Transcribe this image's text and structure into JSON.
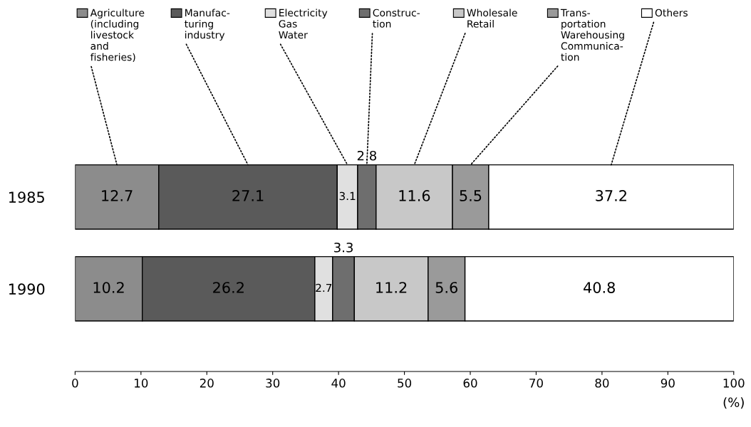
{
  "chart_data": {
    "type": "bar",
    "orientation": "horizontal",
    "stacked": true,
    "categories": [
      "1985",
      "1990"
    ],
    "series": [
      {
        "name": "Agriculture\n(including\nlivestock\nand\nfisheries)",
        "color": "#8c8c8c",
        "values": [
          12.7,
          10.2
        ]
      },
      {
        "name": "Manufac-\nturing\nindustry",
        "color": "#5a5a5a",
        "values": [
          27.1,
          26.2
        ]
      },
      {
        "name": "Electricity\nGas\nWater",
        "color": "#e0e0e0",
        "values": [
          3.1,
          2.7
        ]
      },
      {
        "name": "Construc-\ntion",
        "color": "#6e6e6e",
        "values": [
          2.8,
          3.3
        ]
      },
      {
        "name": "Wholesale\nRetail",
        "color": "#c8c8c8",
        "values": [
          11.6,
          11.2
        ]
      },
      {
        "name": "Trans-\nportation\nWarehousing\nCommunica-\ntion",
        "color": "#9a9a9a",
        "values": [
          5.5,
          5.6
        ]
      },
      {
        "name": "Others",
        "color": "#ffffff",
        "values": [
          37.2,
          40.8
        ]
      }
    ],
    "data_labels": true,
    "xlim": [
      0,
      100
    ],
    "xticks": [
      0,
      10,
      20,
      30,
      40,
      50,
      60,
      70,
      80,
      90,
      100
    ],
    "xlabel": "(%)",
    "grid": false,
    "legend": "top"
  }
}
